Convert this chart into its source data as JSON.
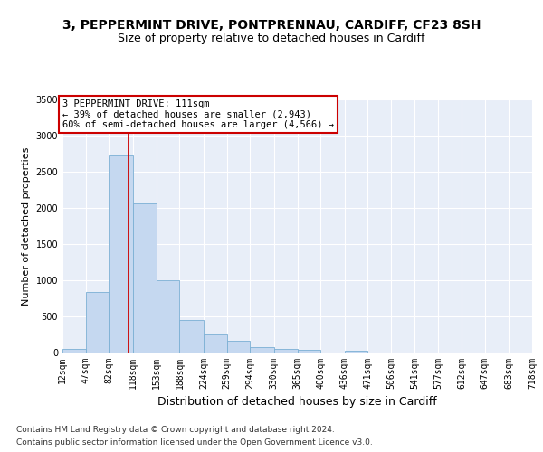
{
  "title_line1": "3, PEPPERMINT DRIVE, PONTPRENNAU, CARDIFF, CF23 8SH",
  "title_line2": "Size of property relative to detached houses in Cardiff",
  "xlabel": "Distribution of detached houses by size in Cardiff",
  "ylabel": "Number of detached properties",
  "bar_color": "#c5d8f0",
  "bar_edge_color": "#7bafd4",
  "bg_color": "#e8eef8",
  "property_line_x": 111,
  "property_line_color": "#cc0000",
  "annotation_text": "3 PEPPERMINT DRIVE: 111sqm\n← 39% of detached houses are smaller (2,943)\n60% of semi-detached houses are larger (4,566) →",
  "annotation_box_color": "#ffffff",
  "annotation_box_edge_color": "#cc0000",
  "bin_edges": [
    12,
    47,
    82,
    118,
    153,
    188,
    224,
    259,
    294,
    330,
    365,
    400,
    436,
    471,
    506,
    541,
    577,
    612,
    647,
    683,
    718
  ],
  "bar_heights": [
    55,
    840,
    2720,
    2060,
    1005,
    450,
    245,
    160,
    70,
    50,
    40,
    0,
    30,
    0,
    0,
    0,
    0,
    0,
    0,
    0
  ],
  "ylim": [
    0,
    3500
  ],
  "yticks": [
    0,
    500,
    1000,
    1500,
    2000,
    2500,
    3000,
    3500
  ],
  "footer_line1": "Contains HM Land Registry data © Crown copyright and database right 2024.",
  "footer_line2": "Contains public sector information licensed under the Open Government Licence v3.0.",
  "title_fontsize": 10,
  "subtitle_fontsize": 9,
  "tick_fontsize": 7,
  "ylabel_fontsize": 8,
  "xlabel_fontsize": 9,
  "footer_fontsize": 6.5,
  "annotation_fontsize": 7.5
}
